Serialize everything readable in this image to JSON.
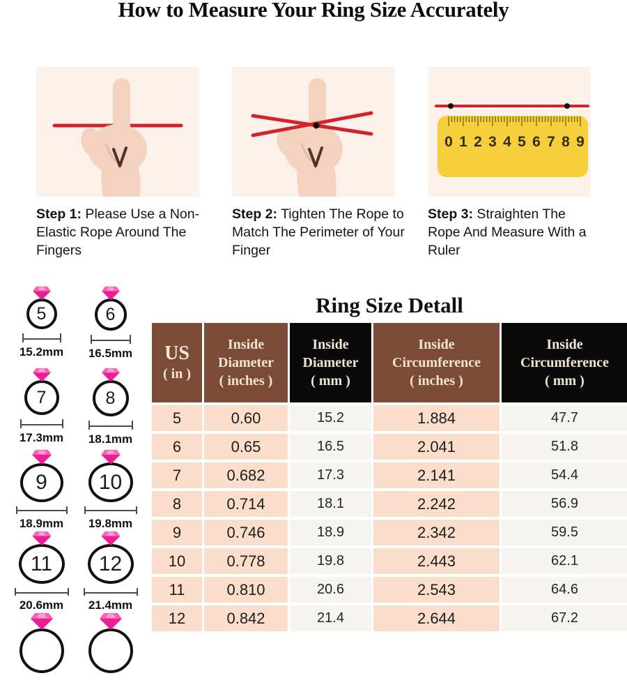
{
  "page": {
    "title": "How to Measure Your Ring Size Accurately"
  },
  "steps": [
    {
      "label": "Step 1:",
      "text": " Please Use a Non-Elastic Rope Around The Fingers",
      "illustration": "finger-with-rope-line"
    },
    {
      "label": "Step 2:",
      "text": " Tighten The Rope to Match The Perimeter of Your Finger",
      "illustration": "finger-with-crossed-rope"
    },
    {
      "label": "Step 3:",
      "text": " Straighten The Rope And Measure With a Ruler",
      "illustration": "rope-on-ruler"
    }
  ],
  "ruler_numbers": [
    "0",
    "1",
    "2",
    "3",
    "4",
    "5",
    "6",
    "7",
    "8",
    "9"
  ],
  "ring_sizes": [
    {
      "size": "5",
      "diameter": "15.2mm"
    },
    {
      "size": "6",
      "diameter": "16.5mm"
    },
    {
      "size": "7",
      "diameter": "17.3mm"
    },
    {
      "size": "8",
      "diameter": "18.1mm"
    },
    {
      "size": "9",
      "diameter": "18.9mm"
    },
    {
      "size": "10",
      "diameter": "19.8mm"
    },
    {
      "size": "11",
      "diameter": "20.6mm"
    },
    {
      "size": "12",
      "diameter": "21.4mm"
    },
    {
      "size": "",
      "diameter": ""
    },
    {
      "size": "",
      "diameter": ""
    }
  ],
  "table": {
    "title": "Ring Size Detall",
    "headers": [
      {
        "lines": [
          "US",
          "( in )"
        ],
        "style": "brown"
      },
      {
        "lines": [
          "Inside",
          "Diameter",
          "( inches )"
        ],
        "style": "brown"
      },
      {
        "lines": [
          "Inside",
          "Diameter",
          "( mm )"
        ],
        "style": "black"
      },
      {
        "lines": [
          "Inside",
          "Circumference",
          "( inches )"
        ],
        "style": "brown"
      },
      {
        "lines": [
          "Inside",
          "Circumference",
          "( mm )"
        ],
        "style": "black"
      }
    ],
    "rows": [
      [
        "5",
        "0.60",
        "15.2",
        "1.884",
        "47.7"
      ],
      [
        "6",
        "0.65",
        "16.5",
        "2.041",
        "51.8"
      ],
      [
        "7",
        "0.682",
        "17.3",
        "2.141",
        "54.4"
      ],
      [
        "8",
        "0.714",
        "18.1",
        "2.242",
        "56.9"
      ],
      [
        "9",
        "0.746",
        "18.9",
        "2.342",
        "59.5"
      ],
      [
        "10",
        "0.778",
        "19.8",
        "2.443",
        "62.1"
      ],
      [
        "11",
        "0.810",
        "20.6",
        "2.543",
        "64.6"
      ],
      [
        "12",
        "0.842",
        "21.4",
        "2.644",
        "67.2"
      ]
    ]
  },
  "colors": {
    "header_brown": "#7b4b38",
    "header_black": "#0a0a0a",
    "header_text": "#f2e6d3",
    "cell_peach": "#fbddcc",
    "cell_light": "#f5f4f1",
    "rope_red": "#d2222a",
    "ruler_yellow": "#f6cf3d",
    "diamond_pink": "#ec1d95",
    "panel_pink": "#fcf0ea",
    "skin": "#f3d3bf"
  }
}
